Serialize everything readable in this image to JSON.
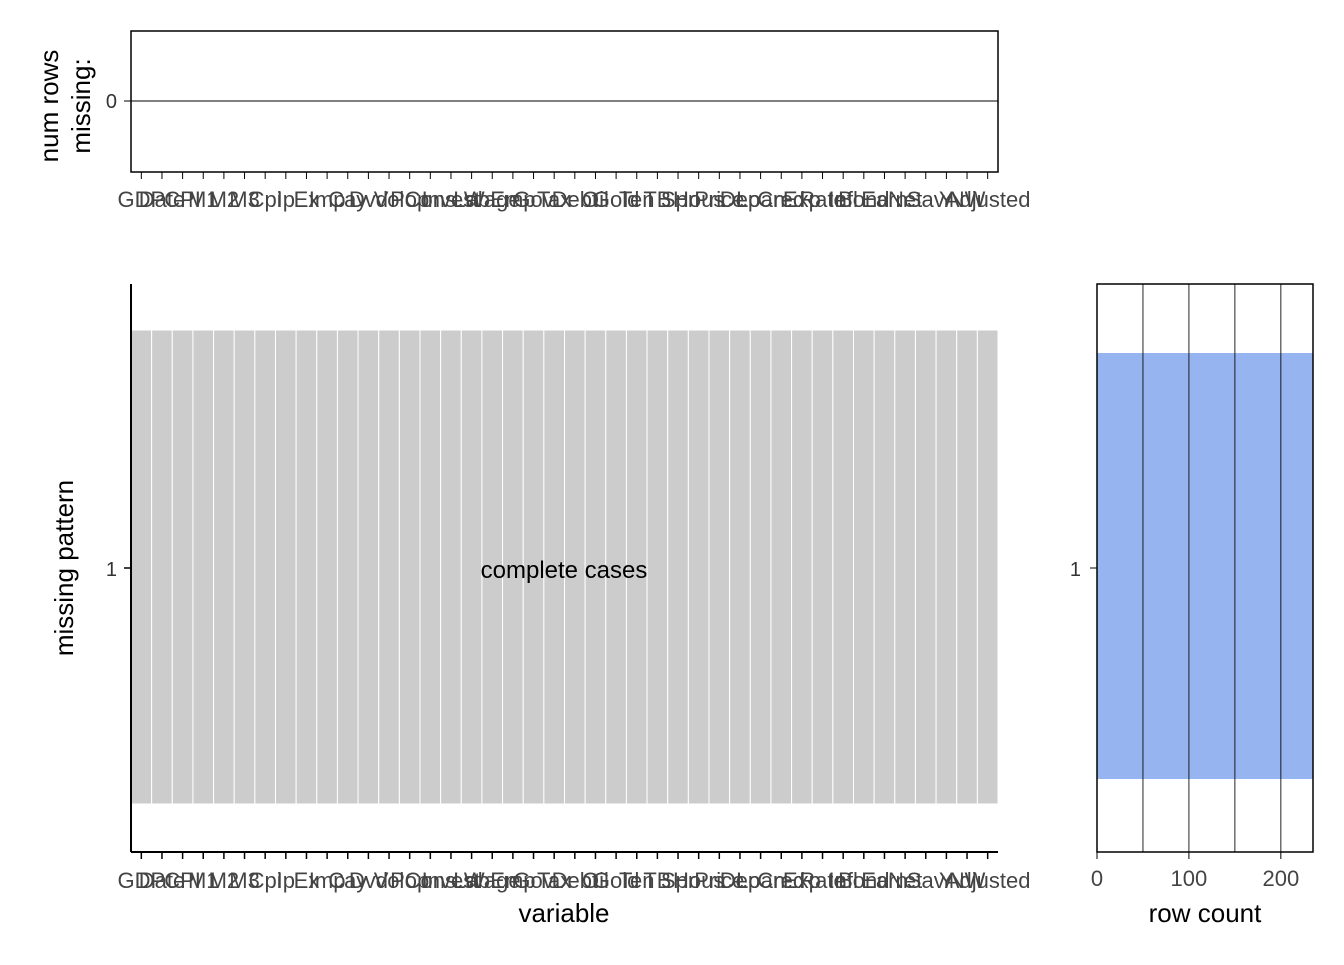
{
  "chart_data": [
    {
      "type": "bar",
      "panel": "top",
      "ylabel": "num rows missing:",
      "ylabel_lines": [
        "num rows",
        "missing:"
      ],
      "y_ticks": [
        "0"
      ],
      "categories": [
        "GDP",
        "Date",
        "CPI",
        "M1",
        "M2",
        "M3",
        "Cpi",
        "Ip",
        "Ex",
        "Imp",
        "Cay",
        "Dvd",
        "Vol",
        "Pop",
        "Cons",
        "Invest",
        "Lab",
        "Wage",
        "Emp",
        "Gov",
        "Tax",
        "Debt",
        "Oil",
        "Gold",
        "Ten",
        "TB",
        "Spr",
        "Hous",
        "Price",
        "Dep",
        "Loan",
        "Cred",
        "Exp",
        "Rate",
        "Infl",
        "Bond",
        "Earn",
        "Net",
        "Sav",
        "Y",
        "NW",
        "Adjusted"
      ],
      "values": [
        0,
        0,
        0,
        0,
        0,
        0,
        0,
        0,
        0,
        0,
        0,
        0,
        0,
        0,
        0,
        0,
        0,
        0,
        0,
        0,
        0,
        0,
        0,
        0,
        0,
        0,
        0,
        0,
        0,
        0,
        0,
        0,
        0,
        0,
        0,
        0,
        0,
        0,
        0,
        0,
        0,
        0
      ]
    },
    {
      "type": "heatmap",
      "panel": "main",
      "xlabel": "variable",
      "ylabel": "missing pattern",
      "y_categories": [
        "1"
      ],
      "x_categories": [
        "GDP",
        "Date",
        "CPI",
        "M1",
        "M2",
        "M3",
        "Cpi",
        "Ip",
        "Ex",
        "Imp",
        "Cay",
        "Dvd",
        "Vol",
        "Pop",
        "Cons",
        "Invest",
        "Lab",
        "Wage",
        "Emp",
        "Gov",
        "Tax",
        "Debt",
        "Oil",
        "Gold",
        "Ten",
        "TB",
        "Spr",
        "Hous",
        "Price",
        "Dep",
        "Loan",
        "Cred",
        "Exp",
        "Rate",
        "Infl",
        "Bond",
        "Earn",
        "Net",
        "Sav",
        "Y",
        "NW",
        "Adjusted"
      ],
      "annotation": "complete cases",
      "cell_status": "not missing",
      "colors": {
        "not_missing": "#cccccc",
        "missing": "#96b4ee"
      }
    },
    {
      "type": "bar",
      "panel": "right",
      "orientation": "horizontal",
      "xlabel": "row count",
      "categories": [
        "1"
      ],
      "values": [
        235
      ],
      "x_ticks": [
        0,
        100,
        200
      ],
      "xlim": [
        0,
        235
      ],
      "color": "#96b4f0"
    }
  ]
}
